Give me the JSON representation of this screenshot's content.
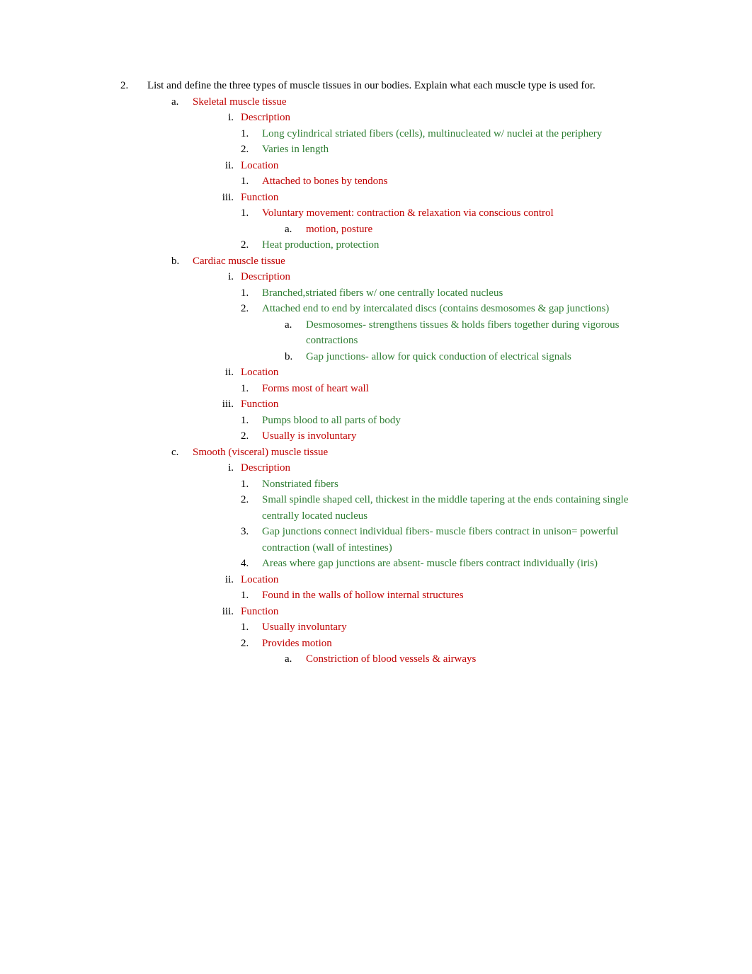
{
  "colors": {
    "black": "#000000",
    "red": "#c00000",
    "green": "#2e7d32",
    "background": "#ffffff"
  },
  "typography": {
    "font_family": "Georgia, serif",
    "font_size_pt": 12,
    "line_height": 1.5
  },
  "question": {
    "number": "2.",
    "text": "List and define the three types of muscle tissues in our bodies.  Explain what each muscle type is used for."
  },
  "items": {
    "a": {
      "marker": "a.",
      "label": "Skeletal muscle tissue",
      "i": {
        "marker": "i.",
        "label": "Description",
        "n1": {
          "marker": "1.",
          "text": "Long cylindrical striated fibers (cells), multinucleated w/ nuclei at the periphery"
        },
        "n2": {
          "marker": "2.",
          "text": "Varies in length"
        }
      },
      "ii": {
        "marker": "ii.",
        "label": "Location",
        "n1": {
          "marker": "1.",
          "text": "Attached to bones by tendons"
        }
      },
      "iii": {
        "marker": "iii.",
        "label": "Function",
        "n1": {
          "marker": "1.",
          "text": "Voluntary movement: contraction & relaxation via conscious control",
          "a": {
            "marker": "a.",
            "text": "motion, posture"
          }
        },
        "n2": {
          "marker": "2.",
          "text": "Heat production, protection"
        }
      }
    },
    "b": {
      "marker": "b.",
      "label": "Cardiac muscle tissue",
      "i": {
        "marker": "i.",
        "label": "Description",
        "n1": {
          "marker": "1.",
          "text": "Branched,striated fibers w/ one centrally located nucleus"
        },
        "n2": {
          "marker": "2.",
          "text": "Attached end to end by intercalated discs  (contains desmosomes & gap junctions)",
          "a": {
            "marker": "a.",
            "text": "Desmosomes- strengthens tissues & holds fibers together during vigorous contractions"
          },
          "b": {
            "marker": "b.",
            "text": "Gap junctions- allow for quick conduction of electrical signals"
          }
        }
      },
      "ii": {
        "marker": "ii.",
        "label": "Location",
        "n1": {
          "marker": "1.",
          "text": "Forms most of heart wall"
        }
      },
      "iii": {
        "marker": "iii.",
        "label": "Function",
        "n1": {
          "marker": "1.",
          "text": "Pumps blood to all parts of body"
        },
        "n2": {
          "marker": "2.",
          "text": "Usually is involuntary"
        }
      }
    },
    "c": {
      "marker": "c.",
      "label": "Smooth (visceral) muscle tissue",
      "i": {
        "marker": "i.",
        "label": "Description",
        "n1": {
          "marker": "1.",
          "text": "Nonstriated fibers"
        },
        "n2": {
          "marker": "2.",
          "text": "Small spindle shaped cell, thickest in the middle tapering at the ends containing single centrally located nucleus"
        },
        "n3": {
          "marker": "3.",
          "text": "Gap junctions connect individual fibers- muscle fibers contract in unison= powerful contraction (wall of intestines)"
        },
        "n4": {
          "marker": "4.",
          "text": "Areas where gap junctions are absent- muscle fibers contract individually  (iris)"
        }
      },
      "ii": {
        "marker": "ii.",
        "label": "Location",
        "n1": {
          "marker": "1.",
          "text": "Found in the walls of hollow internal structures"
        }
      },
      "iii": {
        "marker": "iii.",
        "label": "Function",
        "n1": {
          "marker": "1.",
          "text": "Usually involuntary"
        },
        "n2": {
          "marker": "2.",
          "text": "Provides motion",
          "a": {
            "marker": "a.",
            "text": "Constriction of blood vessels & airways"
          }
        }
      }
    }
  }
}
